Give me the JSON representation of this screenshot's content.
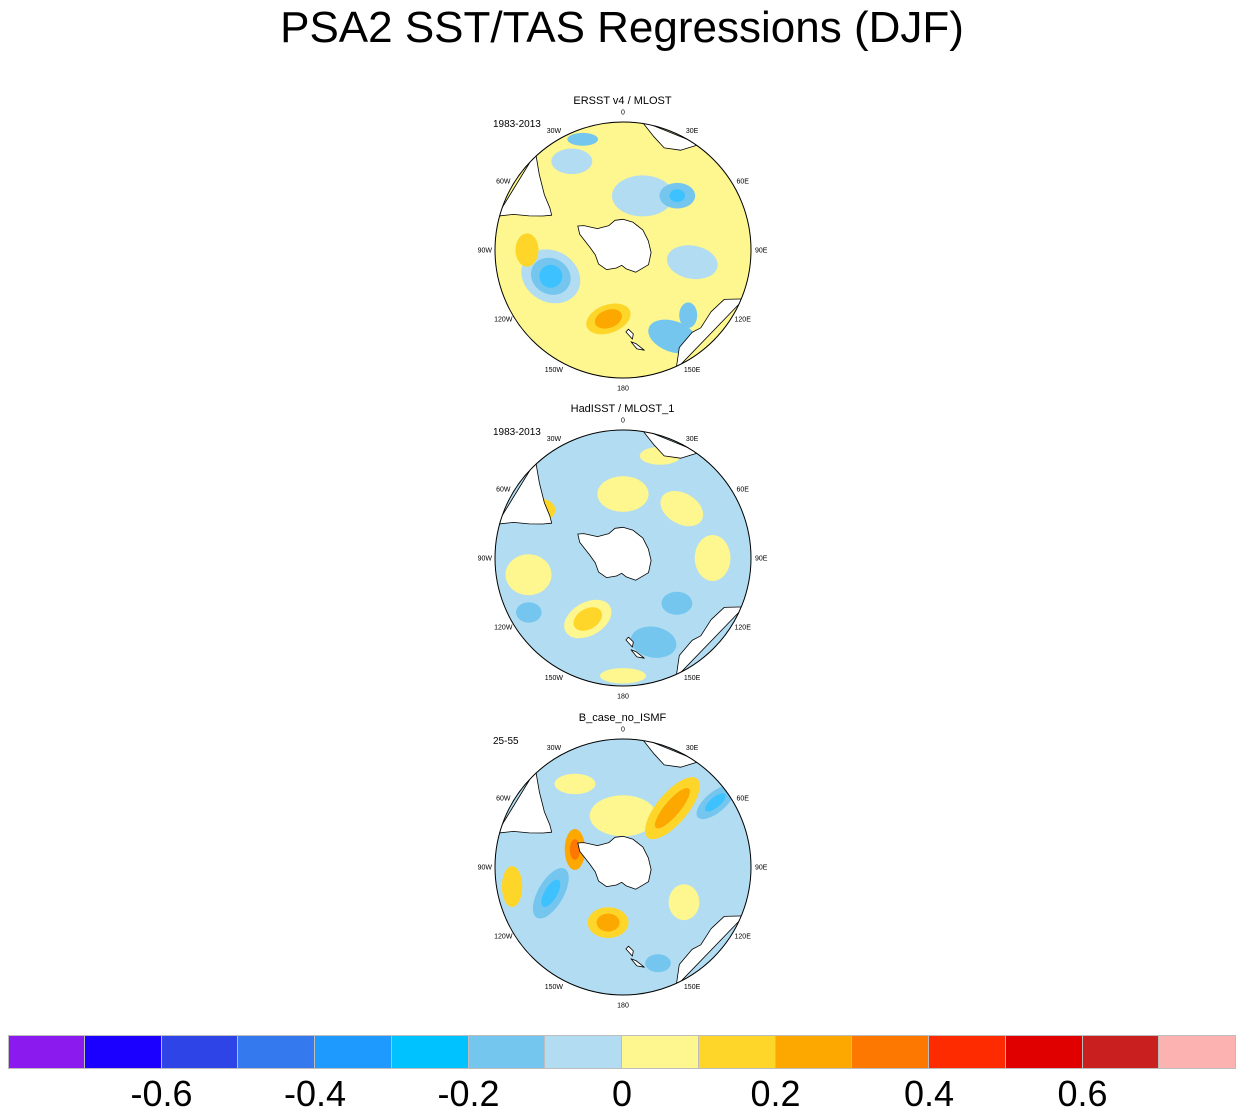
{
  "title": "PSA2 SST/TAS Regressions (DJF)",
  "palette": {
    "vneg": "#1ea0ff",
    "neg": "#3ec2ff",
    "lneg": "#74c6ef",
    "xlneg": "#b2dcf1",
    "xlpos": "#fef68e",
    "lpos": "#fed62a",
    "pos": "#fca800",
    "vpos": "#fc7800",
    "land": "#ffffff",
    "coast": "#000000"
  },
  "panels": [
    {
      "title": "ERSST v4 / MLOST",
      "period": "1983-2013",
      "base": "xlpos",
      "blobs": [
        {
          "lon": 150,
          "r": 0.78,
          "rx": 0.2,
          "ry": 0.12,
          "rot": 20,
          "c": "lneg"
        },
        {
          "lon": 100,
          "r": 0.55,
          "rx": 0.2,
          "ry": 0.13,
          "rot": 10,
          "c": "xlneg"
        },
        {
          "lon": 20,
          "r": 0.45,
          "rx": 0.24,
          "ry": 0.16,
          "rot": 0,
          "c": "xlneg"
        },
        {
          "lon": 45,
          "r": 0.6,
          "rx": 0.14,
          "ry": 0.1,
          "rot": 0,
          "c": "lneg"
        },
        {
          "lon": 45,
          "r": 0.6,
          "rx": 0.06,
          "ry": 0.05,
          "rot": 0,
          "c": "neg"
        },
        {
          "lon": -30,
          "r": 0.8,
          "rx": 0.16,
          "ry": 0.1,
          "rot": 0,
          "c": "xlneg"
        },
        {
          "lon": -20,
          "r": 0.92,
          "rx": 0.12,
          "ry": 0.05,
          "rot": 0,
          "c": "lneg"
        },
        {
          "lon": -110,
          "r": 0.6,
          "rx": 0.24,
          "ry": 0.2,
          "rot": 30,
          "c": "xlneg"
        },
        {
          "lon": -110,
          "r": 0.6,
          "rx": 0.16,
          "ry": 0.14,
          "rot": 30,
          "c": "lneg"
        },
        {
          "lon": -110,
          "r": 0.6,
          "rx": 0.09,
          "ry": 0.09,
          "rot": 30,
          "c": "neg"
        },
        {
          "lon": -168,
          "r": 0.55,
          "rx": 0.18,
          "ry": 0.11,
          "rot": -20,
          "c": "lpos"
        },
        {
          "lon": -168,
          "r": 0.55,
          "rx": 0.11,
          "ry": 0.07,
          "rot": -20,
          "c": "pos"
        },
        {
          "lon": 135,
          "r": 0.72,
          "rx": 0.07,
          "ry": 0.1,
          "rot": 0,
          "c": "lneg"
        },
        {
          "lon": -90,
          "r": 0.75,
          "rx": 0.09,
          "ry": 0.13,
          "rot": 0,
          "c": "lpos"
        }
      ]
    },
    {
      "title": "HadISST / MLOST_1",
      "period": "1983-2013",
      "base": "xlneg",
      "blobs": [
        {
          "lon": 0,
          "r": 0.5,
          "rx": 0.2,
          "ry": 0.14,
          "rot": 0,
          "c": "xlpos"
        },
        {
          "lon": 50,
          "r": 0.6,
          "rx": 0.18,
          "ry": 0.12,
          "rot": 30,
          "c": "xlpos"
        },
        {
          "lon": 90,
          "r": 0.7,
          "rx": 0.14,
          "ry": 0.18,
          "rot": 0,
          "c": "xlpos"
        },
        {
          "lon": -60,
          "r": 0.75,
          "rx": 0.12,
          "ry": 0.09,
          "rot": 0,
          "c": "lpos"
        },
        {
          "lon": -60,
          "r": 0.75,
          "rx": 0.06,
          "ry": 0.05,
          "rot": 0,
          "c": "pos"
        },
        {
          "lon": -100,
          "r": 0.75,
          "rx": 0.18,
          "ry": 0.16,
          "rot": 0,
          "c": "xlpos"
        },
        {
          "lon": -150,
          "r": 0.55,
          "rx": 0.2,
          "ry": 0.13,
          "rot": -30,
          "c": "xlpos"
        },
        {
          "lon": -150,
          "r": 0.55,
          "rx": 0.12,
          "ry": 0.08,
          "rot": -30,
          "c": "lpos"
        },
        {
          "lon": 160,
          "r": 0.7,
          "rx": 0.18,
          "ry": 0.12,
          "rot": 10,
          "c": "lneg"
        },
        {
          "lon": 130,
          "r": 0.55,
          "rx": 0.12,
          "ry": 0.09,
          "rot": 0,
          "c": "lneg"
        },
        {
          "lon": -120,
          "r": 0.85,
          "rx": 0.1,
          "ry": 0.08,
          "rot": 0,
          "c": "lneg"
        },
        {
          "lon": 180,
          "r": 0.92,
          "rx": 0.18,
          "ry": 0.06,
          "rot": 0,
          "c": "xlpos"
        },
        {
          "lon": 20,
          "r": 0.85,
          "rx": 0.16,
          "ry": 0.07,
          "rot": 0,
          "c": "xlpos"
        }
      ]
    },
    {
      "title": "B_case_no_ISMF",
      "period": "25-55",
      "base": "xlneg",
      "blobs": [
        {
          "lon": 0,
          "r": 0.4,
          "rx": 0.26,
          "ry": 0.16,
          "rot": 0,
          "c": "xlpos"
        },
        {
          "lon": 40,
          "r": 0.6,
          "rx": 0.12,
          "ry": 0.3,
          "rot": 40,
          "c": "lpos"
        },
        {
          "lon": 40,
          "r": 0.6,
          "rx": 0.06,
          "ry": 0.2,
          "rot": 40,
          "c": "pos"
        },
        {
          "lon": 55,
          "r": 0.88,
          "rx": 0.08,
          "ry": 0.18,
          "rot": 50,
          "c": "lneg"
        },
        {
          "lon": 55,
          "r": 0.88,
          "rx": 0.04,
          "ry": 0.1,
          "rot": 50,
          "c": "neg"
        },
        {
          "lon": -70,
          "r": 0.4,
          "rx": 0.08,
          "ry": 0.16,
          "rot": 0,
          "c": "pos"
        },
        {
          "lon": -70,
          "r": 0.4,
          "rx": 0.04,
          "ry": 0.08,
          "rot": 0,
          "c": "vpos"
        },
        {
          "lon": -110,
          "r": 0.6,
          "rx": 0.1,
          "ry": 0.22,
          "rot": 30,
          "c": "lneg"
        },
        {
          "lon": -110,
          "r": 0.6,
          "rx": 0.05,
          "ry": 0.12,
          "rot": 30,
          "c": "neg"
        },
        {
          "lon": -165,
          "r": 0.45,
          "rx": 0.16,
          "ry": 0.12,
          "rot": 0,
          "c": "lpos"
        },
        {
          "lon": -165,
          "r": 0.45,
          "rx": 0.09,
          "ry": 0.07,
          "rot": 0,
          "c": "pos"
        },
        {
          "lon": -100,
          "r": 0.88,
          "rx": 0.08,
          "ry": 0.16,
          "rot": 0,
          "c": "lpos"
        },
        {
          "lon": -30,
          "r": 0.75,
          "rx": 0.16,
          "ry": 0.08,
          "rot": 0,
          "c": "xlpos"
        },
        {
          "lon": 120,
          "r": 0.55,
          "rx": 0.12,
          "ry": 0.14,
          "rot": 0,
          "c": "xlpos"
        },
        {
          "lon": 160,
          "r": 0.8,
          "rx": 0.1,
          "ry": 0.07,
          "rot": 0,
          "c": "lneg"
        }
      ]
    }
  ],
  "lon_labels": [
    {
      "lon": 0,
      "text": "0"
    },
    {
      "lon": 30,
      "text": "30E"
    },
    {
      "lon": 60,
      "text": "60E"
    },
    {
      "lon": 90,
      "text": "90E"
    },
    {
      "lon": 120,
      "text": "120E"
    },
    {
      "lon": 150,
      "text": "150E"
    },
    {
      "lon": 180,
      "text": "180"
    },
    {
      "lon": -150,
      "text": "150W"
    },
    {
      "lon": -120,
      "text": "120W"
    },
    {
      "lon": -90,
      "text": "90W"
    },
    {
      "lon": -60,
      "text": "60W"
    },
    {
      "lon": -30,
      "text": "30W"
    }
  ],
  "colorbar": {
    "colors": [
      "#8a1aed",
      "#1c00ff",
      "#2f44e6",
      "#3579ef",
      "#1e9aff",
      "#00c2ff",
      "#74c6ef",
      "#b2dcf1",
      "#fef68e",
      "#fed62a",
      "#fca800",
      "#fc7800",
      "#fe2a00",
      "#e00000",
      "#c91f1f",
      "#fdb2b2"
    ],
    "labels": [
      "-0.6",
      "-0.4",
      "-0.2",
      "0",
      "0.2",
      "0.4",
      "0.6"
    ]
  }
}
